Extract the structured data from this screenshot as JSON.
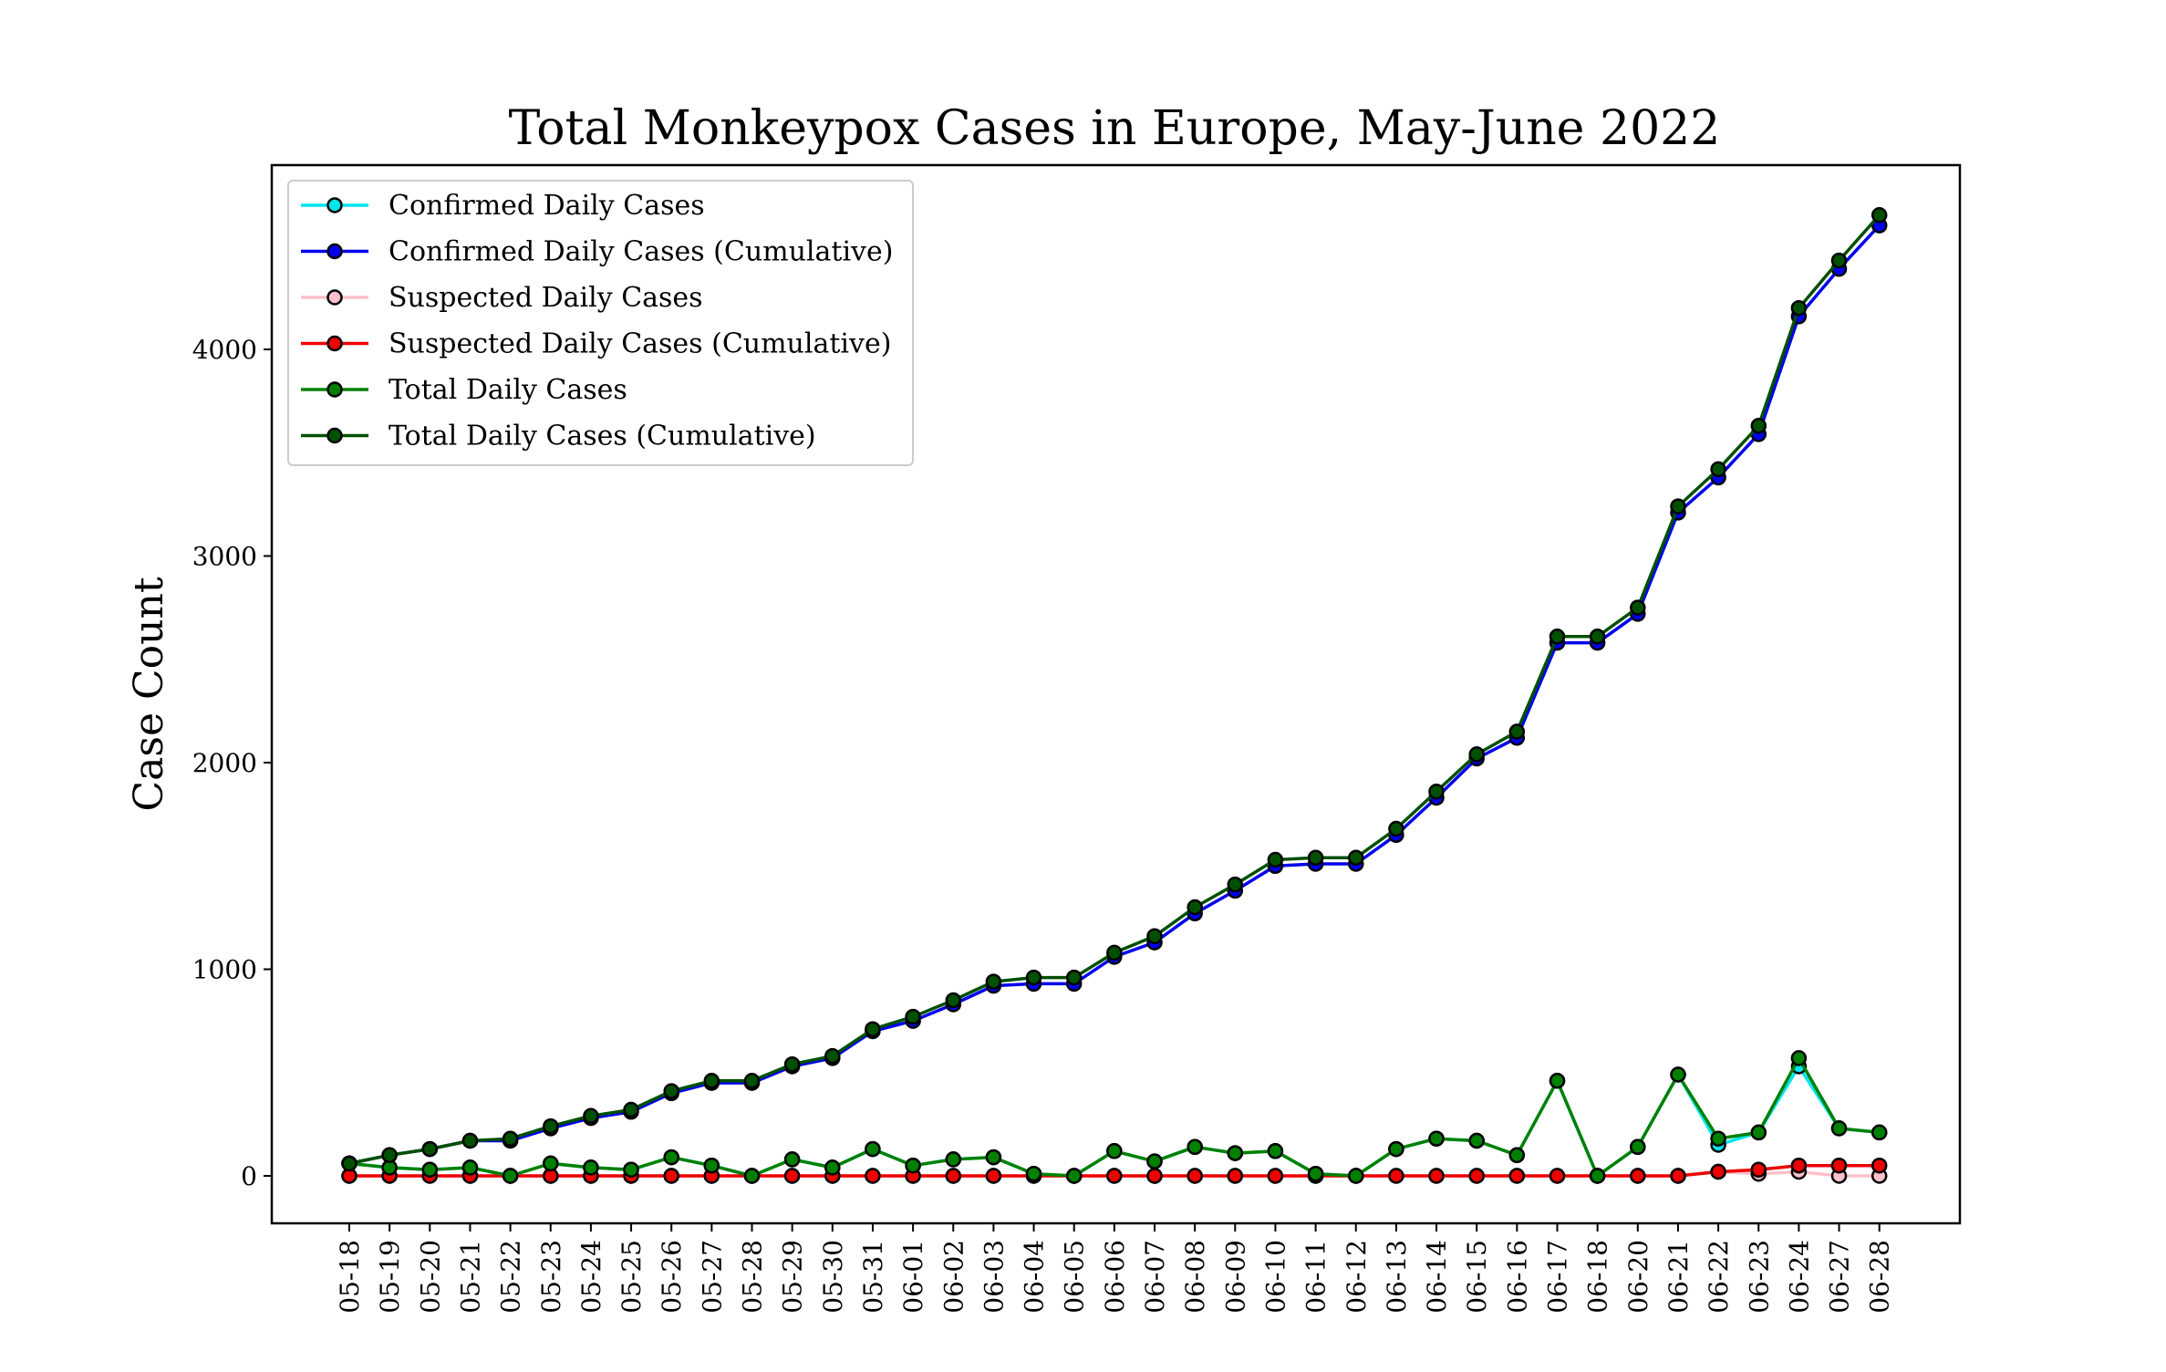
{
  "chart_data": {
    "type": "line",
    "title": "Total Monkeypox Cases in Europe, May-June 2022",
    "xlabel": "",
    "ylabel": "Case Count",
    "ylim": [
      -230,
      4800
    ],
    "yticks": [
      0,
      1000,
      2000,
      3000,
      4000
    ],
    "grid": false,
    "legend_position": "top-left",
    "categories": [
      "05-18",
      "05-19",
      "05-20",
      "05-21",
      "05-22",
      "05-23",
      "05-24",
      "05-25",
      "05-26",
      "05-27",
      "05-28",
      "05-29",
      "05-30",
      "05-31",
      "06-01",
      "06-02",
      "06-03",
      "06-04",
      "06-05",
      "06-06",
      "06-07",
      "06-08",
      "06-09",
      "06-10",
      "06-11",
      "06-12",
      "06-13",
      "06-14",
      "06-15",
      "06-16",
      "06-17",
      "06-18",
      "06-20",
      "06-21",
      "06-22",
      "06-23",
      "06-24",
      "06-27",
      "06-28"
    ],
    "series": [
      {
        "name": "Confirmed Daily Cases",
        "color": "#00e5ee",
        "values": [
          60,
          40,
          30,
          40,
          0,
          60,
          40,
          30,
          90,
          50,
          0,
          80,
          40,
          130,
          50,
          80,
          90,
          10,
          0,
          120,
          70,
          140,
          110,
          120,
          10,
          0,
          130,
          180,
          170,
          100,
          460,
          0,
          140,
          490,
          150,
          210,
          530,
          230,
          210
        ]
      },
      {
        "name": "Confirmed Daily Cases (Cumulative)",
        "color": "#0000ee",
        "values": [
          60,
          100,
          130,
          170,
          170,
          230,
          280,
          310,
          400,
          450,
          450,
          530,
          570,
          700,
          750,
          830,
          920,
          930,
          930,
          1060,
          1130,
          1270,
          1380,
          1500,
          1510,
          1510,
          1650,
          1830,
          2020,
          2120,
          2580,
          2580,
          2720,
          3210,
          3380,
          3590,
          4160,
          4390,
          4600
        ]
      },
      {
        "name": "Suspected Daily Cases",
        "color": "#ffc0cb",
        "values": [
          0,
          0,
          0,
          0,
          0,
          0,
          0,
          0,
          0,
          0,
          0,
          0,
          0,
          0,
          0,
          0,
          0,
          0,
          0,
          0,
          0,
          0,
          0,
          0,
          0,
          0,
          0,
          0,
          0,
          0,
          0,
          0,
          0,
          0,
          20,
          10,
          20,
          0,
          0
        ]
      },
      {
        "name": "Suspected Daily Cases (Cumulative)",
        "color": "#ee0000",
        "values": [
          0,
          0,
          0,
          0,
          0,
          0,
          0,
          0,
          0,
          0,
          0,
          0,
          0,
          0,
          0,
          0,
          0,
          0,
          0,
          0,
          0,
          0,
          0,
          0,
          0,
          0,
          0,
          0,
          0,
          0,
          0,
          0,
          0,
          0,
          20,
          30,
          50,
          50,
          50
        ]
      },
      {
        "name": "Total Daily Cases",
        "color": "#008000",
        "values": [
          60,
          40,
          30,
          40,
          0,
          60,
          40,
          30,
          90,
          50,
          0,
          80,
          40,
          130,
          50,
          80,
          90,
          10,
          0,
          120,
          70,
          140,
          110,
          120,
          10,
          0,
          130,
          180,
          170,
          100,
          460,
          0,
          140,
          490,
          180,
          210,
          570,
          230,
          210
        ]
      },
      {
        "name": "Total Daily Cases (Cumulative)",
        "color": "#005000",
        "values": [
          60,
          100,
          130,
          170,
          180,
          240,
          290,
          320,
          410,
          460,
          460,
          540,
          580,
          710,
          770,
          850,
          940,
          960,
          960,
          1080,
          1160,
          1300,
          1410,
          1530,
          1540,
          1540,
          1680,
          1860,
          2040,
          2150,
          2610,
          2610,
          2750,
          3240,
          3420,
          3630,
          4200,
          4430,
          4650
        ]
      }
    ]
  }
}
